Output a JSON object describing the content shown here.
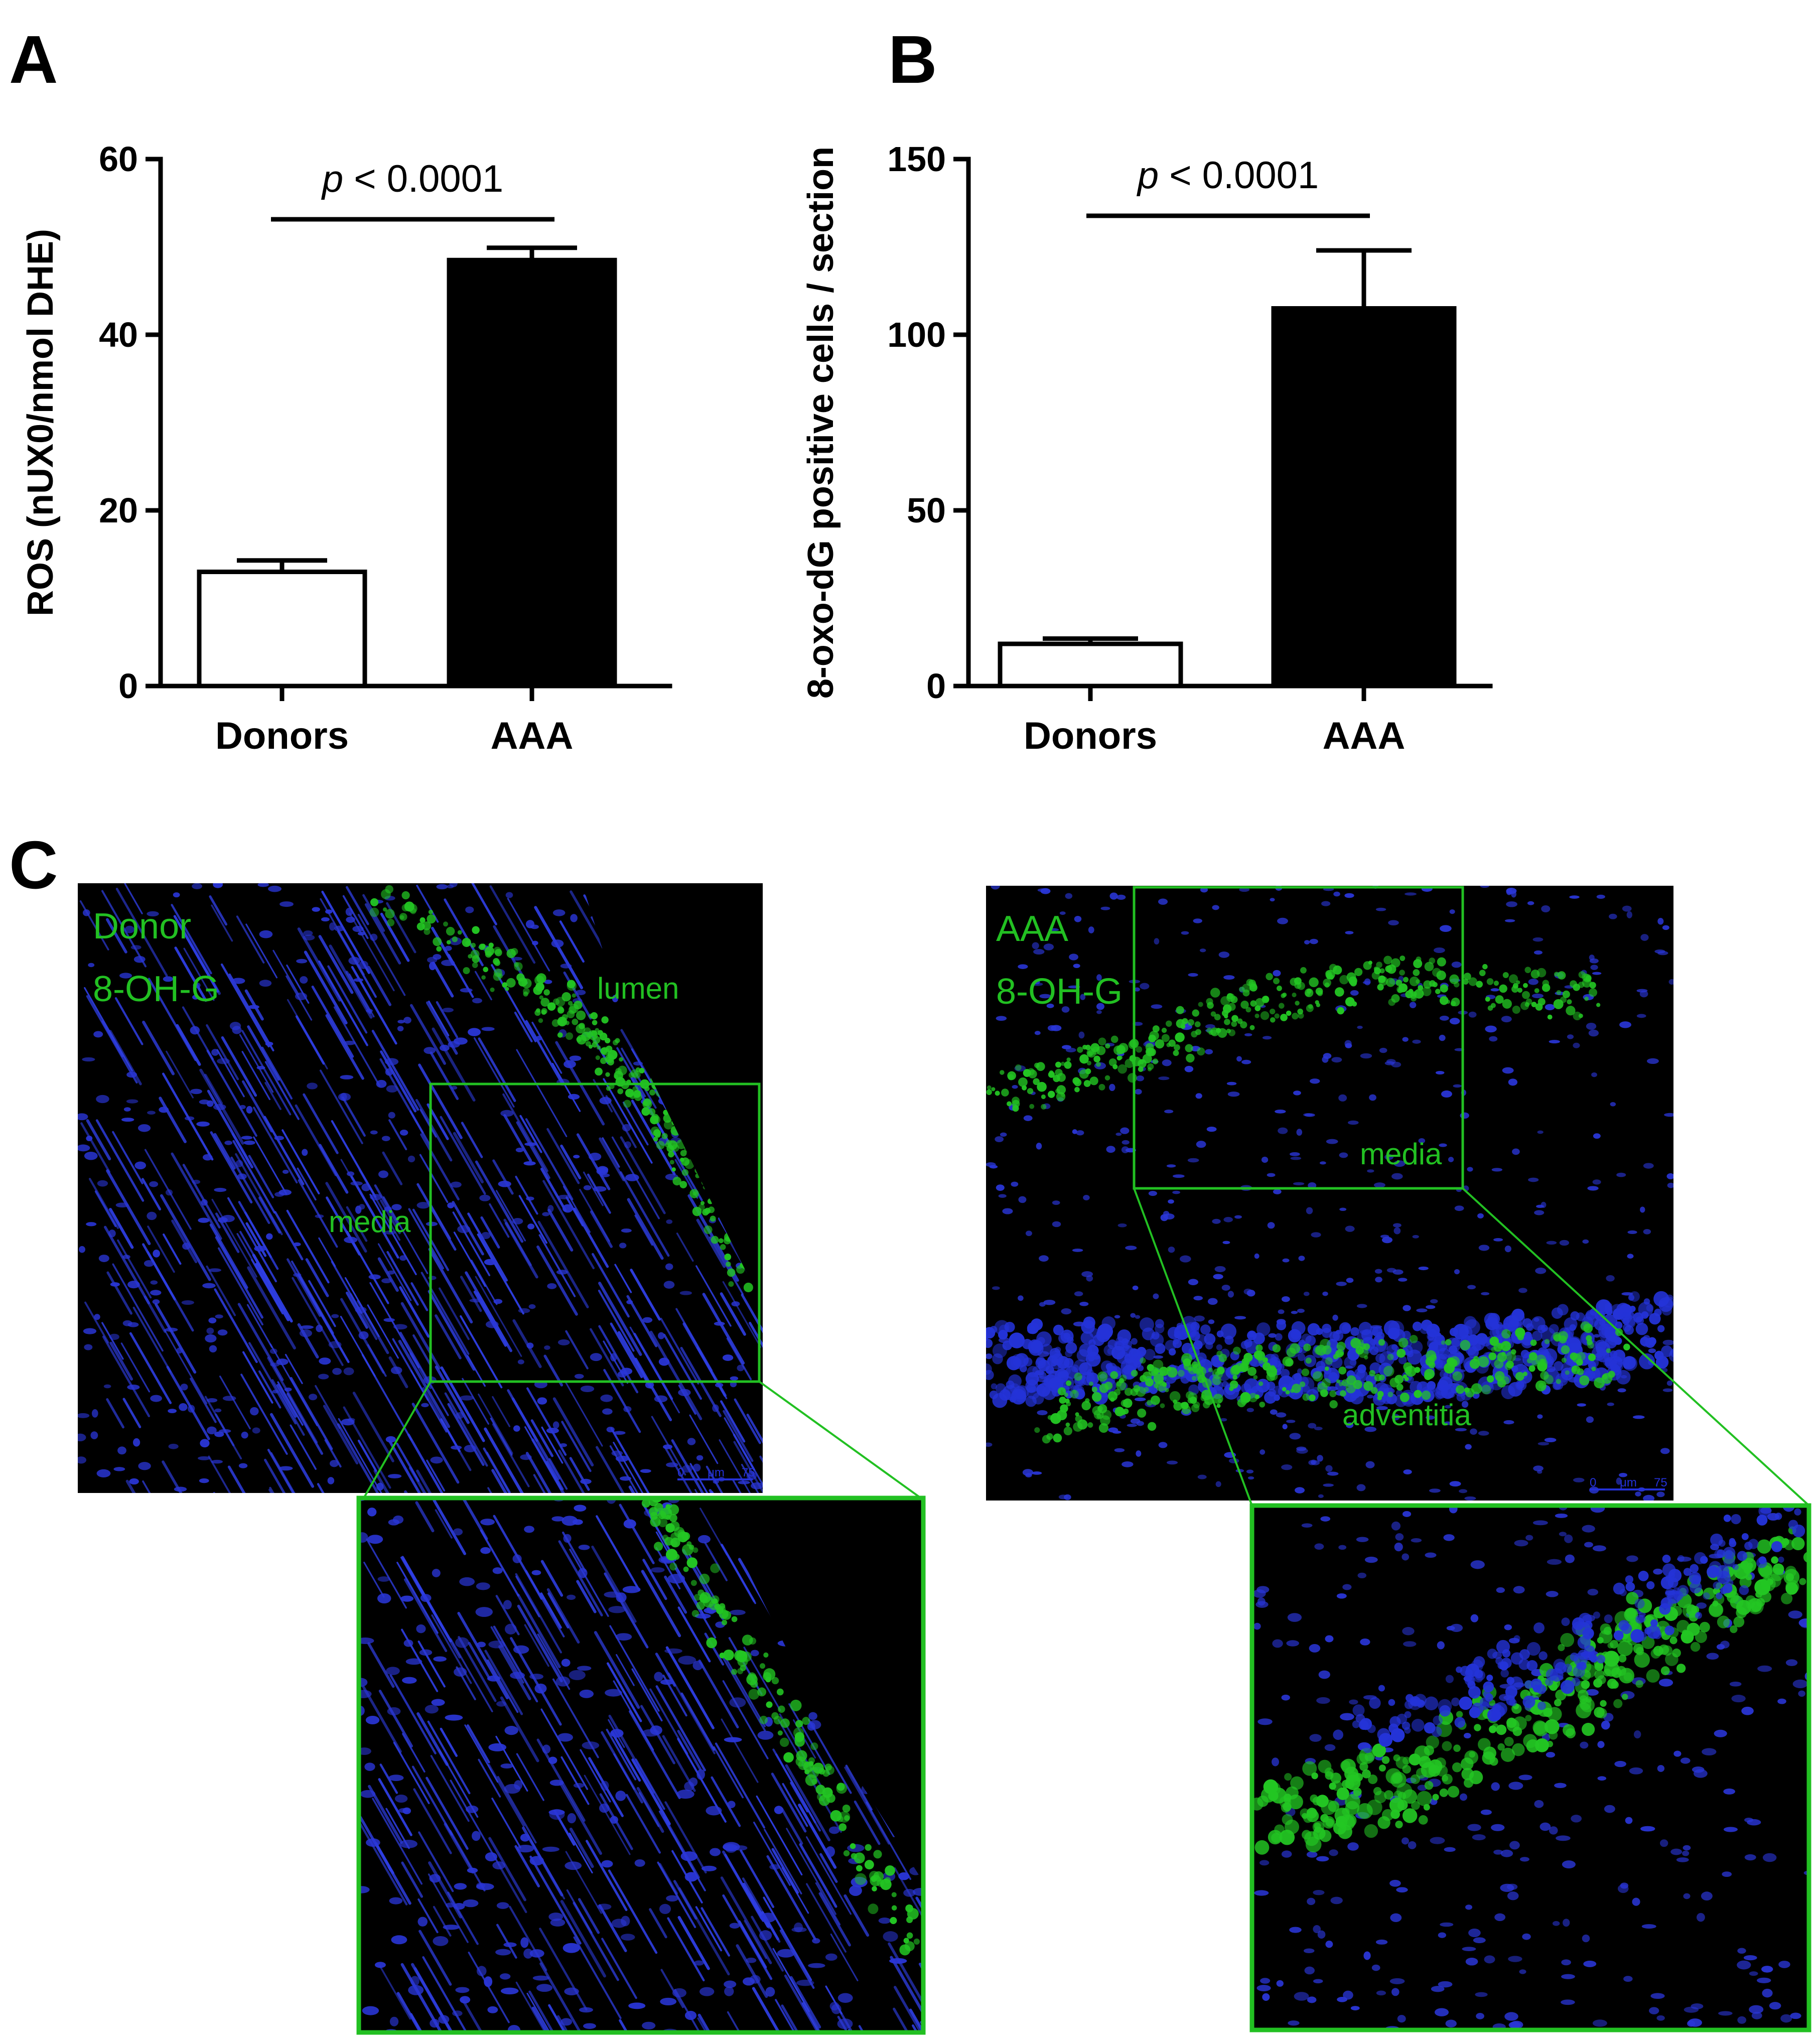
{
  "panel_labels": {
    "a": "A",
    "b": "B",
    "c": "C"
  },
  "colors": {
    "axis": "#000000",
    "donor_bar": "#ffffff",
    "aaa_bar": "#000000",
    "micro_background": "#000000",
    "nuclei": "#2431d6",
    "stain": "#22c022",
    "annotation": "#22c022"
  },
  "chart_data": [
    {
      "type": "bar",
      "panel": "A",
      "title": "",
      "xlabel": "",
      "ylabel": "ROS (nUX0/nmol DHE)",
      "ylim": [
        0,
        60
      ],
      "yticks": [
        "0",
        "20",
        "40",
        "60"
      ],
      "categories": [
        "Donors",
        "AAA"
      ],
      "values": [
        13.0,
        48.5
      ],
      "errors": [
        1.3,
        1.4
      ],
      "bar_colors": [
        "white",
        "black"
      ],
      "significance": {
        "label_italic": "p",
        "label_rest": " < 0.0001"
      },
      "grid": false,
      "legend": "none"
    },
    {
      "type": "bar",
      "panel": "B",
      "title": "",
      "xlabel": "",
      "ylabel": "8-oxo-dG positive cells / section",
      "ylim": [
        0,
        150
      ],
      "yticks": [
        "0",
        "50",
        "100",
        "150"
      ],
      "categories": [
        "Donors",
        "AAA"
      ],
      "values": [
        12.0,
        107.5
      ],
      "errors": [
        1.5,
        16.5
      ],
      "bar_colors": [
        "white",
        "black"
      ],
      "significance": {
        "label_italic": "p",
        "label_rest": " < 0.0001"
      },
      "grid": false,
      "legend": "none"
    }
  ],
  "micrographs": {
    "donor": {
      "label_line1": "Donor",
      "label_line2": "8-OH-G",
      "annotations": {
        "lumen": "lumen",
        "media": "media"
      },
      "scalebar": {
        "start": "0",
        "unit": "μm",
        "end": "75"
      }
    },
    "aaa": {
      "label_line1": "AAA",
      "label_line2": "8-OH-G",
      "annotations": {
        "media": "media",
        "adventitia": "adventitia"
      },
      "scalebar": {
        "start": "0",
        "unit": "μm",
        "end": "75"
      }
    }
  }
}
